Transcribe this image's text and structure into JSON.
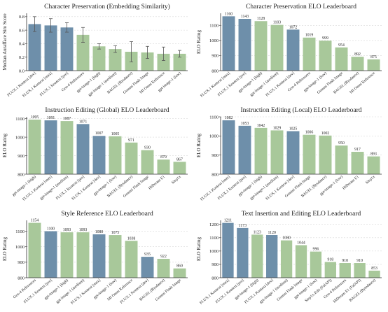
{
  "colors": {
    "blue": "#6e8faa",
    "green": "#a8c89a",
    "axis": "#333333",
    "grid": "#d8d8d8",
    "error_bar": "#555555"
  },
  "chart_data": [
    {
      "type": "bar",
      "title": "Character Preservation (Embedding Similarity)",
      "ylabel": "Median Aurafface Sim Score",
      "ylim": [
        0,
        0.85
      ],
      "yticks": [
        0.0,
        0.2,
        0.4,
        0.6,
        0.8
      ],
      "show_value_labels": false,
      "categories": [
        "FLUX.1 Kontext [dev]",
        "FLUX.1 Kontext [max]",
        "FLUX.1 Kontext [pro]",
        "Gen-4 References",
        "gpt-image-1 (high)",
        "gpt-image-1 (medium)",
        "BAGEL (Bysdance)",
        "Gemini Flash Image",
        "MI Omni Reference",
        "gpt-image-1 (low)"
      ],
      "values": [
        0.69,
        0.67,
        0.64,
        0.53,
        0.36,
        0.32,
        0.28,
        0.27,
        0.25,
        0.25
      ],
      "errors": [
        0.11,
        0.1,
        0.07,
        0.11,
        0.04,
        0.05,
        0.15,
        0.09,
        0.1,
        0.05
      ],
      "bar_colors": [
        "blue",
        "blue",
        "blue",
        "green",
        "green",
        "green",
        "green",
        "green",
        "green",
        "green"
      ]
    },
    {
      "type": "bar",
      "title": "Character Preservation ELO Leaderboard",
      "ylabel": "ELO Rating",
      "ylim": [
        800,
        1180
      ],
      "yticks": [
        800,
        900,
        1000,
        1100
      ],
      "show_value_labels": true,
      "categories": [
        "FLUX.1 Kontext [max]",
        "FLUX.1 Kontext [pro]",
        "gpt-image-1 (high)",
        "gpt-image-1 (medium)",
        "FLUX.1 Kontext [dev]",
        "Gen-4 References",
        "gpt-image-1 (low)",
        "Gemini Flash Image",
        "BAGEL (Bysdance)",
        "MI Omni Reference"
      ],
      "values": [
        1160,
        1143,
        1128,
        1103,
        1072,
        1019,
        999,
        954,
        892,
        875
      ],
      "bar_colors": [
        "blue",
        "blue",
        "green",
        "green",
        "blue",
        "green",
        "green",
        "green",
        "green",
        "green"
      ]
    },
    {
      "type": "bar",
      "title": "Instruction Editing (Global) ELO Leaderboard",
      "ylabel": "ELO Rating",
      "ylim": [
        800,
        1110
      ],
      "yticks": [
        800,
        900,
        1000,
        1100
      ],
      "show_value_labels": true,
      "categories": [
        "gpt-image-1 (high)",
        "FLUX.1 Kontext [max]",
        "gpt-image-1 (medium)",
        "FLUX.1 Kontext [pro]",
        "FLUX.1 Kontext [dev]",
        "gpt-image-1 (low)",
        "BAGEL (Bysdance)",
        "Gemini Flash Image",
        "HiDream E1",
        "Step1x"
      ],
      "values": [
        1095,
        1091,
        1087,
        1071,
        1007,
        1005,
        971,
        930,
        879,
        867
      ],
      "bar_colors": [
        "green",
        "blue",
        "green",
        "blue",
        "blue",
        "green",
        "green",
        "green",
        "green",
        "green"
      ]
    },
    {
      "type": "bar",
      "title": "Instruction Editing (Local) ELO Leaderboard",
      "ylabel": "ELO Rating",
      "ylim": [
        800,
        1100
      ],
      "yticks": [
        800,
        900,
        1000,
        1100
      ],
      "show_value_labels": true,
      "categories": [
        "FLUX.1 Kontext [max]",
        "FLUX.1 Kontext [pro]",
        "gpt-image-1 (high)",
        "gpt-image-1 (medium)",
        "FLUX.1 Kontext [dev]",
        "Gemini Flash Image",
        "BAGEL (Bysdance)",
        "gpt-image-1 (low)",
        "HiDream E1",
        "Step1x"
      ],
      "values": [
        1082,
        1053,
        1042,
        1029,
        1025,
        1006,
        1002,
        950,
        917,
        893
      ],
      "bar_colors": [
        "blue",
        "blue",
        "green",
        "green",
        "blue",
        "green",
        "green",
        "green",
        "green",
        "green"
      ]
    },
    {
      "type": "bar",
      "title": "Style Reference ELO Leaderboard",
      "ylabel": "ELO Rating",
      "ylim": [
        800,
        1170
      ],
      "yticks": [
        800,
        900,
        1000,
        1100
      ],
      "show_value_labels": true,
      "categories": [
        "Gen-4 References",
        "FLUX.1 Kontext [pro]",
        "gpt-image-1 (high)",
        "gpt-image-1 (medium)",
        "FLUX.1 Kontext [max]",
        "gpt-image-1 (low)",
        "MI Omni Reference",
        "FLUX.1 Kontext [dev]",
        "BAGEL (Bysdance)",
        "Gemini Flash Image"
      ],
      "values": [
        1154,
        1100,
        1093,
        1093,
        1080,
        1075,
        1038,
        935,
        922,
        860
      ],
      "bar_colors": [
        "green",
        "blue",
        "green",
        "green",
        "blue",
        "green",
        "green",
        "blue",
        "green",
        "green"
      ]
    },
    {
      "type": "bar",
      "title": "Text Insertion and Editing ELO Leaderboard",
      "ylabel": "ELO Rating",
      "ylim": [
        800,
        1230
      ],
      "yticks": [
        800,
        900,
        1000,
        1100,
        1200
      ],
      "show_value_labels": true,
      "categories": [
        "FLUX.1 Kontext [max]",
        "FLUX.1 Kontext [pro]",
        "gpt-image-1 (high)",
        "FLUX.1 Kontext [dev]",
        "gpt-image-1 (medium)",
        "Gemini Flash Image",
        "gpt-image-1 (low)",
        "Step1x-Edit (FalAPI)",
        "Gen-4 References",
        "HiDream E1 (FalAPI)",
        "BAGEL (Bytedance)"
      ],
      "values": [
        1211,
        1173,
        1123,
        1120,
        1080,
        1044,
        996,
        918,
        910,
        910,
        853
      ],
      "bar_colors": [
        "blue",
        "blue",
        "green",
        "blue",
        "green",
        "green",
        "green",
        "green",
        "green",
        "green",
        "green"
      ]
    }
  ]
}
